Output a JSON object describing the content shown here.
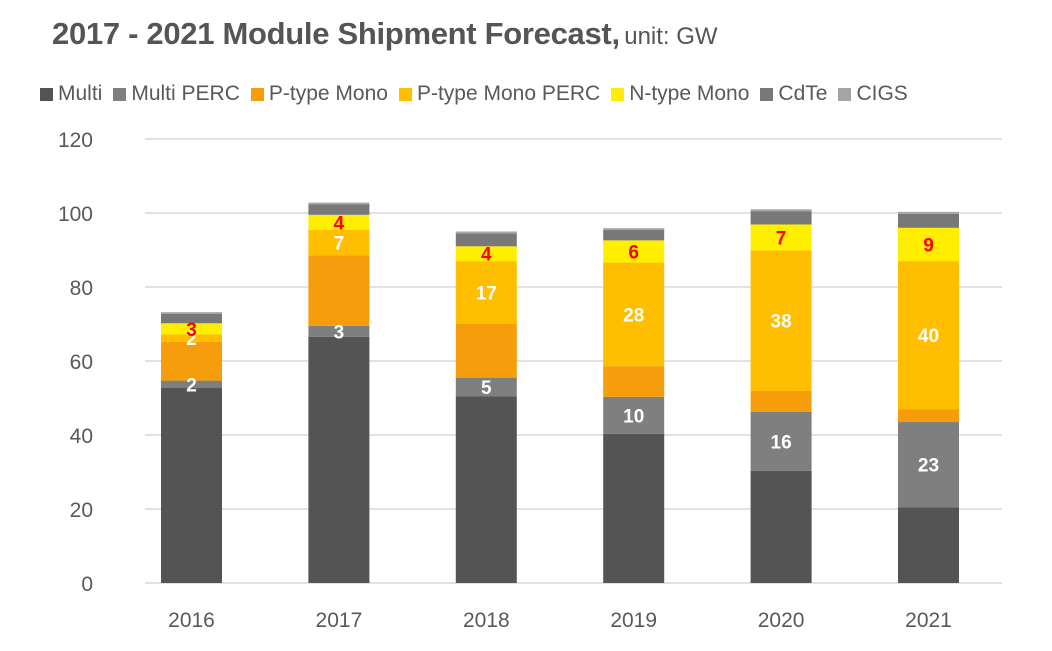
{
  "chart_data": {
    "type": "bar",
    "stacked": true,
    "title": "2017 - 2021 Module Shipment Forecast,",
    "subtitle": "unit: GW",
    "xlabel": "",
    "ylabel": "",
    "ylim": [
      0,
      120
    ],
    "yticks": [
      0,
      20,
      40,
      60,
      80,
      100,
      120
    ],
    "grid": true,
    "legend_position": "top",
    "categories": [
      "2016",
      "2017",
      "2018",
      "2019",
      "2020",
      "2021"
    ],
    "series": [
      {
        "name": "Multi",
        "color": "#545454",
        "values": [
          52.7,
          66.5,
          50.5,
          40.3,
          30.3,
          20.5
        ],
        "labels": [
          null,
          null,
          null,
          null,
          null,
          null
        ]
      },
      {
        "name": "Multi PERC",
        "color": "#7f7f7f",
        "values": [
          2,
          3,
          5,
          10,
          16,
          23
        ],
        "labels": [
          "2",
          "3",
          "5",
          "10",
          "16",
          "23"
        ]
      },
      {
        "name": "P-type Mono",
        "color": "#f59d0a",
        "values": [
          10.5,
          19,
          14.5,
          8.3,
          5.6,
          3.5
        ],
        "labels": [
          null,
          null,
          null,
          null,
          null,
          null
        ]
      },
      {
        "name": "P-type Mono PERC",
        "color": "#ffbf00",
        "values": [
          2,
          7,
          17,
          28,
          38,
          40
        ],
        "labels": [
          "2",
          "7",
          "17",
          "28",
          "38",
          "40"
        ]
      },
      {
        "name": "N-type Mono",
        "color": "#ffee00",
        "values": [
          3,
          4,
          4,
          6,
          7,
          9
        ],
        "labels": [
          "3",
          "4",
          "4",
          "6",
          "7",
          "9"
        ]
      },
      {
        "name": "CdTe",
        "color": "#787878",
        "values": [
          2.5,
          2.8,
          3.5,
          2.8,
          3.6,
          3.8
        ],
        "labels": [
          null,
          null,
          null,
          null,
          null,
          null
        ]
      },
      {
        "name": "CIGS",
        "color": "#a5a5a5",
        "values": [
          0.5,
          0.5,
          0.5,
          0.5,
          0.5,
          0.5
        ],
        "labels": [
          null,
          null,
          null,
          null,
          null,
          null
        ]
      }
    ],
    "label_colors": {
      "Multi PERC": "#ffffff",
      "P-type Mono PERC": "#ffffff",
      "N-type Mono": "#ff0000"
    }
  }
}
